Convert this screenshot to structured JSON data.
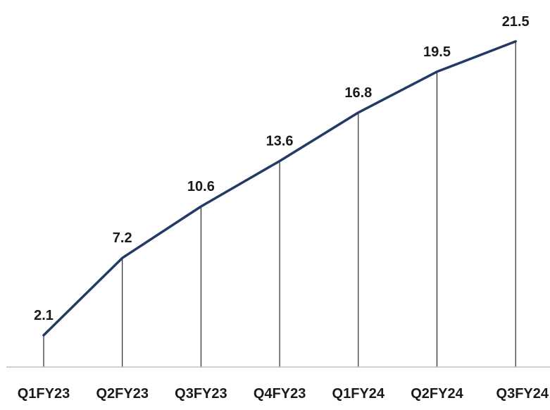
{
  "chart_data": {
    "type": "line",
    "title": "",
    "xlabel": "",
    "ylabel": "",
    "categories": [
      "Q1FY23",
      "Q2FY23",
      "Q3FY23",
      "Q4FY23",
      "Q1FY24",
      "Q2FY24",
      "Q3FY24"
    ],
    "series": [
      {
        "values": [
          2.1,
          7.2,
          10.6,
          13.6,
          16.8,
          19.5,
          21.5
        ],
        "data_labels": [
          "2.1",
          "7.2",
          "10.6",
          "13.6",
          "16.8",
          "19.5",
          "21.5"
        ]
      }
    ],
    "ylim": [
      0,
      22.0
    ],
    "grid": false,
    "legend": "none",
    "drop_lines": true,
    "line_color": "#243a66",
    "drop_line_color": "#000000",
    "axis_color": "#bfbfbf",
    "text_color": "#1a1a1a"
  }
}
